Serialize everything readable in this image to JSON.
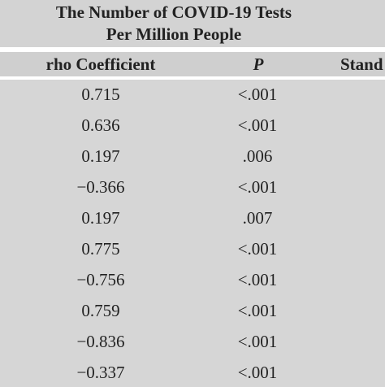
{
  "table": {
    "title_line1": "The Number of COVID-19 Tests",
    "title_line2": "Per Million People",
    "columns": {
      "rho": "rho Coefficient",
      "p": "P",
      "stand": "Stand"
    },
    "rows": [
      {
        "rho": "0.715",
        "p": "<.001"
      },
      {
        "rho": "0.636",
        "p": "<.001"
      },
      {
        "rho": "0.197",
        "p": ".006"
      },
      {
        "rho": "−0.366",
        "p": "<.001"
      },
      {
        "rho": "0.197",
        "p": ".007"
      },
      {
        "rho": "0.775",
        "p": "<.001"
      },
      {
        "rho": "−0.756",
        "p": "<.001"
      },
      {
        "rho": "0.759",
        "p": "<.001"
      },
      {
        "rho": "−0.836",
        "p": "<.001"
      },
      {
        "rho": "−0.337",
        "p": "<.001"
      }
    ]
  }
}
